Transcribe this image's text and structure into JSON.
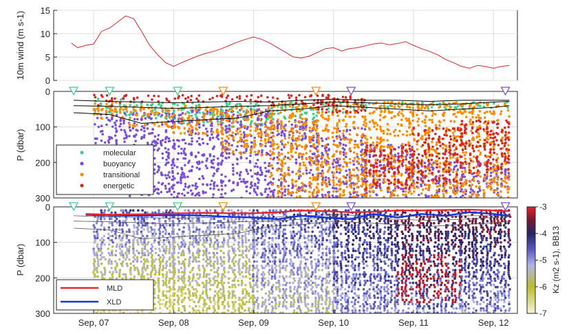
{
  "chart_data": [
    {
      "panel": "wind",
      "type": "line",
      "ylabel": "10m wind (m s-1)",
      "ylim": [
        0,
        15
      ],
      "yticks": [
        "0",
        "5",
        "10",
        "15"
      ],
      "grid": true,
      "series": [
        {
          "color": "#d62728",
          "x": [
            6.72,
            6.8,
            6.9,
            7.0,
            7.1,
            7.2,
            7.3,
            7.4,
            7.5,
            7.6,
            7.7,
            7.8,
            7.9,
            8.0,
            8.1,
            8.2,
            8.3,
            8.4,
            8.5,
            8.6,
            8.7,
            8.8,
            8.9,
            9.0,
            9.1,
            9.2,
            9.3,
            9.4,
            9.5,
            9.6,
            9.7,
            9.8,
            9.9,
            10.0,
            10.1,
            10.2,
            10.3,
            10.4,
            10.5,
            10.6,
            10.7,
            10.8,
            10.9,
            11.0,
            11.1,
            11.2,
            11.3,
            11.4,
            11.5,
            11.6,
            11.7,
            11.8,
            11.9,
            12.0,
            12.1,
            12.2
          ],
          "y": [
            8.0,
            7.0,
            7.5,
            7.8,
            10.5,
            11.2,
            12.5,
            13.8,
            13.2,
            10.5,
            7.5,
            5.5,
            3.8,
            3.0,
            3.8,
            4.5,
            5.2,
            5.8,
            6.2,
            6.8,
            7.5,
            8.2,
            8.8,
            9.3,
            8.8,
            8.0,
            7.0,
            6.0,
            5.0,
            4.8,
            5.2,
            6.0,
            6.8,
            7.0,
            6.3,
            6.8,
            7.0,
            7.4,
            7.8,
            8.0,
            7.6,
            7.9,
            8.3,
            7.5,
            6.8,
            6.2,
            5.5,
            4.5,
            3.8,
            3.0,
            2.6,
            3.2,
            3.0,
            2.6,
            3.0,
            3.2
          ]
        }
      ]
    },
    {
      "panel": "regimes",
      "type": "scatter",
      "ylabel": "P (dbar)",
      "ylim": [
        300,
        0
      ],
      "yticks": [
        "0",
        "100",
        "200",
        "300"
      ],
      "legend_position": "bottom-left",
      "legend": [
        "molecular",
        "buoyancy",
        "transitional",
        "energetic"
      ],
      "colors": [
        "#3ccf8e",
        "#7b4fd6",
        "#ff8c00",
        "#d62728"
      ],
      "profile_bins": [
        {
          "x_start": 7.0,
          "x_end": 7.4,
          "molecular": [
            20,
            60
          ],
          "buoyancy": [
            60,
            230
          ],
          "transitional": [
            30,
            80
          ],
          "energetic": [
            10,
            40
          ]
        },
        {
          "x_start": 7.4,
          "x_end": 8.0,
          "molecular": [
            30,
            80
          ],
          "buoyancy": [
            60,
            300
          ],
          "transitional": [
            40,
            100
          ],
          "energetic": [
            10,
            30
          ]
        },
        {
          "x_start": 8.0,
          "x_end": 8.6,
          "molecular": [
            30,
            90
          ],
          "buoyancy": [
            50,
            300
          ],
          "transitional": [
            40,
            120
          ],
          "energetic": [
            10,
            30
          ]
        },
        {
          "x_start": 8.6,
          "x_end": 9.2,
          "molecular": [
            30,
            100
          ],
          "buoyancy": [
            50,
            300
          ],
          "transitional": [
            40,
            180
          ],
          "energetic": [
            10,
            30
          ]
        },
        {
          "x_start": 9.2,
          "x_end": 9.8,
          "molecular": [
            30,
            80
          ],
          "buoyancy": [
            80,
            300
          ],
          "transitional": [
            30,
            300
          ],
          "energetic": [
            10,
            40
          ]
        },
        {
          "x_start": 9.8,
          "x_end": 10.4,
          "molecular": [
            30,
            60
          ],
          "buoyancy": [
            100,
            300
          ],
          "transitional": [
            20,
            300
          ],
          "energetic": [
            10,
            60
          ]
        },
        {
          "x_start": 10.4,
          "x_end": 11.0,
          "molecular": [
            30,
            50
          ],
          "buoyancy": [
            150,
            300
          ],
          "transitional": [
            30,
            300
          ],
          "energetic": [
            150,
            280
          ]
        },
        {
          "x_start": 11.0,
          "x_end": 11.6,
          "molecular": [
            30,
            50
          ],
          "buoyancy": [
            200,
            300
          ],
          "transitional": [
            30,
            300
          ],
          "energetic": [
            100,
            260
          ]
        },
        {
          "x_start": 11.6,
          "x_end": 12.2,
          "molecular": [
            30,
            50
          ],
          "buoyancy": [
            200,
            300
          ],
          "transitional": [
            30,
            300
          ],
          "energetic": [
            80,
            230
          ]
        }
      ],
      "isopycnals": {
        "color": "#000000",
        "x": [
          6.75,
          7.2,
          7.6,
          8.0,
          8.4,
          8.8,
          9.2,
          9.6,
          10.0,
          10.4,
          10.8,
          11.2,
          11.6,
          12.0,
          12.2
        ],
        "series": [
          {
            "y": [
              25,
              28,
              30,
              32,
              30,
              28,
              30,
              25,
              22,
              25,
              25,
              28,
              25,
              25,
              25
            ]
          },
          {
            "y": [
              40,
              42,
              45,
              48,
              45,
              42,
              40,
              35,
              30,
              32,
              35,
              38,
              35,
              30,
              28
            ]
          },
          {
            "y": [
              60,
              65,
              90,
              85,
              80,
              75,
              55,
              50,
              40,
              45,
              50,
              55,
              50,
              45,
              40
            ]
          }
        ]
      }
    },
    {
      "panel": "kz",
      "type": "heatmap",
      "ylabel": "P (dbar)",
      "ylim": [
        300,
        0
      ],
      "yticks": [
        "0",
        "100",
        "200",
        "300"
      ],
      "colorbar": {
        "label": "Kz (m2 s-1), BB13",
        "ticks": [
          "-3",
          "-4",
          "-5",
          "-6",
          "-7"
        ],
        "range": [
          -7,
          -3
        ]
      },
      "legend_position": "bottom-left",
      "legend": [
        {
          "name": "MLD",
          "color": "#e8262b"
        },
        {
          "name": "XLD",
          "color": "#1432e6"
        }
      ],
      "xtick_labels": [
        "Sep, 07",
        "Sep, 08",
        "Sep, 09",
        "Sep, 10",
        "Sep, 11",
        "Sep, 12"
      ],
      "xlim": [
        6.5,
        12.3
      ],
      "profile_bins": [
        {
          "x_start": 7.0,
          "x_end": 8.0,
          "log10_kz_surface": -4.5,
          "log10_kz_deep": -6.5
        },
        {
          "x_start": 8.0,
          "x_end": 9.0,
          "log10_kz_surface": -4.8,
          "log10_kz_deep": -6.2
        },
        {
          "x_start": 9.0,
          "x_end": 10.0,
          "log10_kz_surface": -4.5,
          "log10_kz_deep": -5.5
        },
        {
          "x_start": 10.0,
          "x_end": 10.8,
          "log10_kz_surface": -4.0,
          "log10_kz_deep": -5.0
        },
        {
          "x_start": 10.8,
          "x_end": 11.6,
          "log10_kz_surface": -3.5,
          "log10_kz_deep": -4.8,
          "patch": {
            "depth": [
              130,
              270
            ],
            "log10_kz": -3.2
          }
        },
        {
          "x_start": 11.6,
          "x_end": 12.2,
          "log10_kz_surface": -3.5,
          "log10_kz_deep": -5.0
        }
      ],
      "mld": {
        "x": [
          6.9,
          7.2,
          7.5,
          7.8,
          8.1,
          8.4,
          8.7,
          9.0,
          9.3,
          9.6,
          9.9,
          10.2,
          10.5,
          10.8,
          11.1,
          11.4,
          11.7,
          12.0,
          12.2
        ],
        "y": [
          20,
          22,
          21,
          20,
          18,
          17,
          18,
          18,
          15,
          10,
          12,
          15,
          14,
          10,
          10,
          9,
          8,
          10,
          12
        ]
      },
      "xld": {
        "x": [
          6.9,
          7.2,
          7.5,
          7.8,
          8.1,
          8.4,
          8.7,
          9.0,
          9.3,
          9.6,
          9.9,
          10.2,
          10.5,
          10.8,
          11.1,
          11.4,
          11.7,
          12.0,
          12.2
        ],
        "y": [
          22,
          24,
          25,
          24,
          23,
          25,
          28,
          30,
          35,
          25,
          30,
          35,
          20,
          30,
          20,
          25,
          15,
          20,
          25
        ]
      }
    }
  ],
  "markers": {
    "x": [
      6.75,
      7.2,
      8.05,
      8.62,
      9.78,
      10.22,
      12.15
    ],
    "colors": [
      "#3ccf8e",
      "#3ccf8e",
      "#3ccf8e",
      "#ff8c00",
      "#ff8c00",
      "#7b4fd6",
      "#7b4fd6"
    ]
  }
}
